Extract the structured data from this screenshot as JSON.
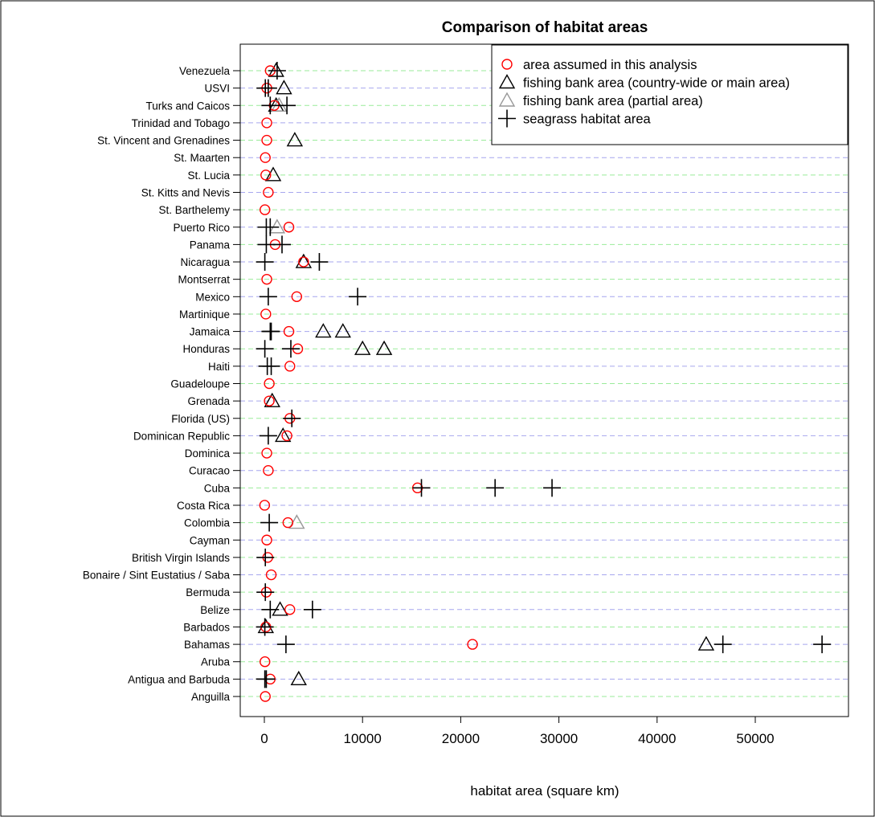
{
  "chart_data": {
    "type": "scatter",
    "title": "Comparison of habitat areas",
    "xlabel": "habitat area (square km)",
    "ylabel": "",
    "xlim": [
      -2200,
      59000
    ],
    "xticks": [
      0,
      10000,
      20000,
      30000,
      40000,
      50000
    ],
    "xtick_labels": [
      "0",
      "10000",
      "20000",
      "30000",
      "40000",
      "50000"
    ],
    "grid": "dashed horizontal lines, alternating blue and green",
    "legend_position": "top-right",
    "categories": [
      "Anguilla",
      "Antigua and Barbuda",
      "Aruba",
      "Bahamas",
      "Barbados",
      "Belize",
      "Bermuda",
      "Bonaire / Sint Eustatius / Saba",
      "British Virgin Islands",
      "Cayman",
      "Colombia",
      "Costa Rica",
      "Cuba",
      "Curacao",
      "Dominica",
      "Dominican Republic",
      "Florida (US)",
      "Grenada",
      "Guadeloupe",
      "Haiti",
      "Honduras",
      "Jamaica",
      "Martinique",
      "Mexico",
      "Montserrat",
      "Nicaragua",
      "Panama",
      "Puerto Rico",
      "St. Barthelemy",
      "St. Kitts and Nevis",
      "St. Lucia",
      "St. Maarten",
      "St. Vincent and Grenadines",
      "Trinidad and Tobago",
      "Turks and Caicos",
      "USVI",
      "Venezuela"
    ],
    "series": [
      {
        "name": "area assumed in this analysis",
        "marker": "circle",
        "color": "#ff0000",
        "points": [
          [
            "Anguilla",
            100
          ],
          [
            "Antigua and Barbuda",
            600
          ],
          [
            "Aruba",
            60
          ],
          [
            "Bahamas",
            21200
          ],
          [
            "Barbados",
            150
          ],
          [
            "Belize",
            2600
          ],
          [
            "Bermuda",
            200
          ],
          [
            "Bonaire / Sint Eustatius / Saba",
            700
          ],
          [
            "British Virgin Islands",
            350
          ],
          [
            "Cayman",
            250
          ],
          [
            "Colombia",
            2400
          ],
          [
            "Costa Rica",
            30
          ],
          [
            "Cuba",
            15600
          ],
          [
            "Curacao",
            400
          ],
          [
            "Dominica",
            250
          ],
          [
            "Dominican Republic",
            2300
          ],
          [
            "Florida (US)",
            2600
          ],
          [
            "Grenada",
            500
          ],
          [
            "Guadeloupe",
            500
          ],
          [
            "Haiti",
            2600
          ],
          [
            "Honduras",
            3400
          ],
          [
            "Jamaica",
            2500
          ],
          [
            "Martinique",
            150
          ],
          [
            "Mexico",
            3300
          ],
          [
            "Montserrat",
            250
          ],
          [
            "Nicaragua",
            4000
          ],
          [
            "Panama",
            1100
          ],
          [
            "Puerto Rico",
            2500
          ],
          [
            "St. Barthelemy",
            60
          ],
          [
            "St. Kitts and Nevis",
            400
          ],
          [
            "St. Lucia",
            150
          ],
          [
            "St. Maarten",
            100
          ],
          [
            "St. Vincent and Grenadines",
            250
          ],
          [
            "Trinidad and Tobago",
            250
          ],
          [
            "Turks and Caicos",
            1000
          ],
          [
            "USVI",
            250
          ],
          [
            "Venezuela",
            600
          ]
        ]
      },
      {
        "name": "fishing bank area (country-wide or main area)",
        "marker": "triangle",
        "color": "#000000",
        "points": [
          [
            "Antigua and Barbuda",
            3500
          ],
          [
            "Bahamas",
            45000
          ],
          [
            "Barbados",
            150
          ],
          [
            "Belize",
            1600
          ],
          [
            "Grenada",
            800
          ],
          [
            "Honduras",
            10000
          ],
          [
            "Honduras",
            12200
          ],
          [
            "Jamaica",
            6000
          ],
          [
            "Jamaica",
            8000
          ],
          [
            "Nicaragua",
            4000
          ],
          [
            "St. Lucia",
            900
          ],
          [
            "St. Vincent and Grenadines",
            3100
          ],
          [
            "Turks and Caicos",
            1200
          ],
          [
            "USVI",
            2000
          ],
          [
            "Venezuela",
            1200
          ],
          [
            "Dominican Republic",
            1900
          ]
        ]
      },
      {
        "name": "fishing bank area (partial area)",
        "marker": "triangle",
        "color": "#999999",
        "points": [
          [
            "Colombia",
            3300
          ],
          [
            "Puerto Rico",
            1300
          ],
          [
            "Turks and Caicos",
            1500
          ]
        ]
      },
      {
        "name": "seagrass habitat area",
        "marker": "plus",
        "color": "#000000",
        "points": [
          [
            "Antigua and Barbuda",
            50
          ],
          [
            "Antigua and Barbuda",
            200
          ],
          [
            "Bahamas",
            2200
          ],
          [
            "Bahamas",
            46700
          ],
          [
            "Bahamas",
            56800
          ],
          [
            "Barbados",
            50
          ],
          [
            "Belize",
            600
          ],
          [
            "Belize",
            4900
          ],
          [
            "Bermuda",
            100
          ],
          [
            "British Virgin Islands",
            100
          ],
          [
            "Colombia",
            500
          ],
          [
            "Cuba",
            16000
          ],
          [
            "Cuba",
            23500
          ],
          [
            "Cuba",
            29300
          ],
          [
            "Dominican Republic",
            400
          ],
          [
            "Florida (US)",
            2800
          ],
          [
            "Haiti",
            300
          ],
          [
            "Haiti",
            700
          ],
          [
            "Honduras",
            50
          ],
          [
            "Honduras",
            2700
          ],
          [
            "Jamaica",
            600
          ],
          [
            "Jamaica",
            700
          ],
          [
            "Mexico",
            400
          ],
          [
            "Mexico",
            9500
          ],
          [
            "Nicaragua",
            50
          ],
          [
            "Nicaragua",
            5600
          ],
          [
            "Panama",
            200
          ],
          [
            "Panama",
            1800
          ],
          [
            "Puerto Rico",
            200
          ],
          [
            "Puerto Rico",
            600
          ],
          [
            "Turks and Caicos",
            600
          ],
          [
            "Turks and Caicos",
            2300
          ],
          [
            "USVI",
            100
          ],
          [
            "USVI",
            400
          ],
          [
            "Venezuela",
            1300
          ]
        ]
      }
    ]
  }
}
